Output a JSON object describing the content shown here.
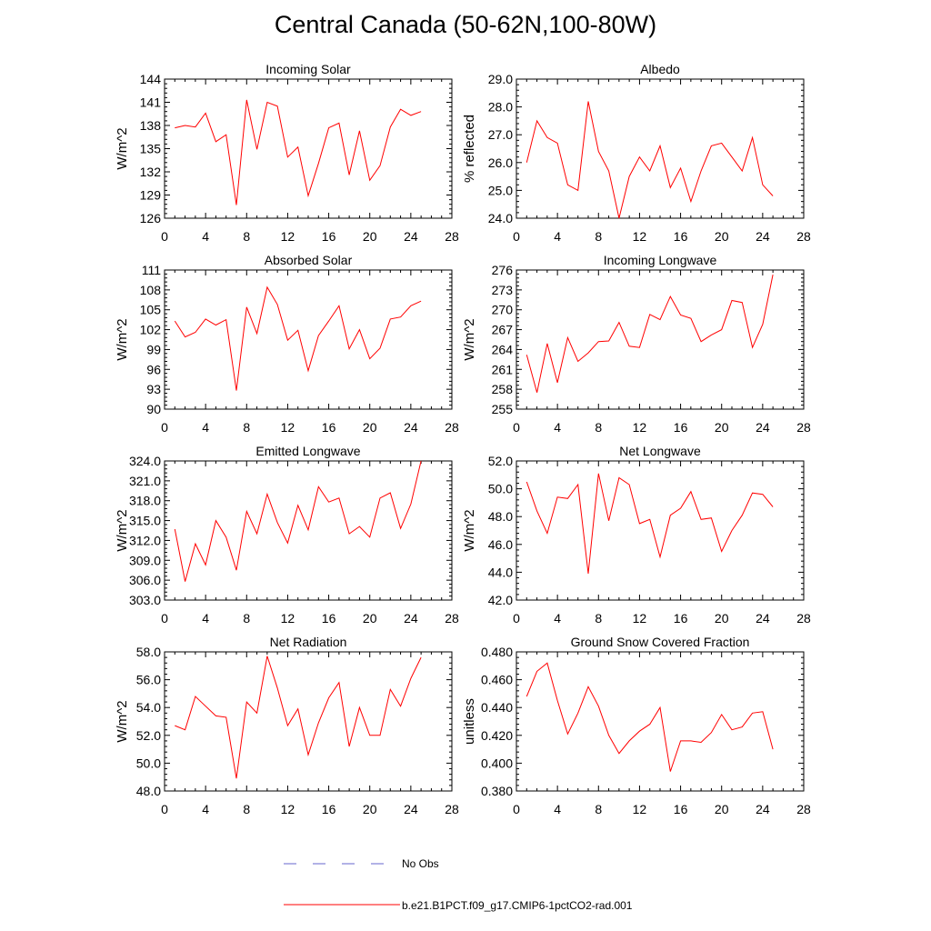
{
  "figure": {
    "title": "Central Canada (50-62N,100-80W)"
  },
  "legend": {
    "obs_label": "No Obs",
    "obs_color": "#6666cc",
    "model_label": "b.e21.B1PCT.f09_g17.CMIP6-1pctCO2-rad.001",
    "model_color": "#ff0000"
  },
  "chart_data": [
    {
      "type": "line",
      "title": "Incoming Solar",
      "ylabel": "W/m^2",
      "xlim": [
        0,
        28
      ],
      "ylim": [
        126,
        144
      ],
      "xticks": [
        "0",
        "4",
        "8",
        "12",
        "16",
        "20",
        "24",
        "28"
      ],
      "yticks": [
        "126",
        "129",
        "132",
        "135",
        "138",
        "141",
        "144"
      ],
      "series": [
        {
          "color": "#ff0000",
          "x": [
            1,
            2,
            3,
            4,
            5,
            6,
            7,
            8,
            9,
            10,
            11,
            12,
            13,
            14,
            15,
            16,
            17,
            18,
            19,
            20,
            21,
            22,
            23,
            24,
            25
          ],
          "values": [
            137.7,
            138.0,
            137.8,
            139.6,
            135.9,
            136.8,
            127.7,
            141.3,
            134.9,
            141.0,
            140.5,
            133.9,
            135.2,
            128.9,
            133.1,
            137.7,
            138.3,
            131.6,
            137.3,
            130.9,
            132.8,
            137.8,
            140.1,
            139.3,
            139.8
          ]
        }
      ]
    },
    {
      "type": "line",
      "title": "Albedo",
      "ylabel": "% reflected",
      "xlim": [
        0,
        28
      ],
      "ylim": [
        24.0,
        29.0
      ],
      "xticks": [
        "0",
        "4",
        "8",
        "12",
        "16",
        "20",
        "24",
        "28"
      ],
      "yticks": [
        "24.0",
        "25.0",
        "26.0",
        "27.0",
        "28.0",
        "29.0"
      ],
      "series": [
        {
          "color": "#ff0000",
          "x": [
            1,
            2,
            3,
            4,
            5,
            6,
            7,
            8,
            9,
            10,
            11,
            12,
            13,
            14,
            15,
            16,
            17,
            18,
            19,
            20,
            21,
            22,
            23,
            24,
            25
          ],
          "values": [
            26.0,
            27.5,
            26.9,
            26.7,
            25.2,
            25.0,
            28.2,
            26.4,
            25.7,
            24.0,
            25.5,
            26.2,
            25.7,
            26.6,
            25.1,
            25.8,
            24.6,
            25.7,
            26.6,
            26.7,
            26.2,
            25.7,
            26.9,
            25.2,
            24.8
          ]
        }
      ]
    },
    {
      "type": "line",
      "title": "Absorbed Solar",
      "ylabel": "W/m^2",
      "xlim": [
        0,
        28
      ],
      "ylim": [
        90,
        111
      ],
      "xticks": [
        "0",
        "4",
        "8",
        "12",
        "16",
        "20",
        "24",
        "28"
      ],
      "yticks": [
        "90",
        "93",
        "96",
        "99",
        "102",
        "105",
        "108",
        "111"
      ],
      "series": [
        {
          "color": "#ff0000",
          "x": [
            1,
            2,
            3,
            4,
            5,
            6,
            7,
            8,
            9,
            10,
            11,
            12,
            13,
            14,
            15,
            16,
            17,
            18,
            19,
            20,
            21,
            22,
            23,
            24,
            25
          ],
          "values": [
            103.3,
            100.9,
            101.6,
            103.6,
            102.7,
            103.5,
            92.8,
            105.4,
            101.4,
            108.4,
            105.8,
            100.4,
            101.9,
            95.8,
            101.1,
            103.3,
            105.6,
            99.1,
            102.0,
            97.6,
            99.2,
            103.6,
            103.9,
            105.6,
            106.3
          ]
        }
      ]
    },
    {
      "type": "line",
      "title": "Incoming Longwave",
      "ylabel": "W/m^2",
      "xlim": [
        0,
        28
      ],
      "ylim": [
        255,
        276
      ],
      "xticks": [
        "0",
        "4",
        "8",
        "12",
        "16",
        "20",
        "24",
        "28"
      ],
      "yticks": [
        "255",
        "258",
        "261",
        "264",
        "267",
        "270",
        "273",
        "276"
      ],
      "series": [
        {
          "color": "#ff0000",
          "x": [
            1,
            2,
            3,
            4,
            5,
            6,
            7,
            8,
            9,
            10,
            11,
            12,
            13,
            14,
            15,
            16,
            17,
            18,
            19,
            20,
            21,
            22,
            23,
            24,
            25
          ],
          "values": [
            263.2,
            257.5,
            264.9,
            259.0,
            265.8,
            262.2,
            263.5,
            265.2,
            265.3,
            268.1,
            264.5,
            264.3,
            269.3,
            268.5,
            272.0,
            269.2,
            268.7,
            265.2,
            266.2,
            267.0,
            271.4,
            271.1,
            264.3,
            267.8,
            275.3
          ]
        }
      ]
    },
    {
      "type": "line",
      "title": "Emitted Longwave",
      "ylabel": "W/m^2",
      "xlim": [
        0,
        28
      ],
      "ylim": [
        303.0,
        324.0
      ],
      "xticks": [
        "0",
        "4",
        "8",
        "12",
        "16",
        "20",
        "24",
        "28"
      ],
      "yticks": [
        "303.0",
        "306.0",
        "309.0",
        "312.0",
        "315.0",
        "318.0",
        "321.0",
        "324.0"
      ],
      "series": [
        {
          "color": "#ff0000",
          "x": [
            1,
            2,
            3,
            4,
            5,
            6,
            7,
            8,
            9,
            10,
            11,
            12,
            13,
            14,
            15,
            16,
            17,
            18,
            19,
            20,
            21,
            22,
            23,
            24,
            25
          ],
          "values": [
            313.7,
            305.8,
            311.5,
            308.3,
            315.0,
            312.5,
            307.5,
            316.4,
            313.0,
            319.0,
            314.7,
            311.6,
            317.3,
            313.6,
            320.1,
            317.8,
            318.4,
            313.0,
            314.1,
            312.5,
            318.4,
            319.2,
            313.8,
            317.5,
            324.0
          ]
        }
      ]
    },
    {
      "type": "line",
      "title": "Net Longwave",
      "ylabel": "W/m^2",
      "xlim": [
        0,
        28
      ],
      "ylim": [
        42.0,
        52.0
      ],
      "xticks": [
        "0",
        "4",
        "8",
        "12",
        "16",
        "20",
        "24",
        "28"
      ],
      "yticks": [
        "42.0",
        "44.0",
        "46.0",
        "48.0",
        "50.0",
        "52.0"
      ],
      "series": [
        {
          "color": "#ff0000",
          "x": [
            1,
            2,
            3,
            4,
            5,
            6,
            7,
            8,
            9,
            10,
            11,
            12,
            13,
            14,
            15,
            16,
            17,
            18,
            19,
            20,
            21,
            22,
            23,
            24,
            25
          ],
          "values": [
            50.5,
            48.4,
            46.8,
            49.4,
            49.3,
            50.3,
            43.9,
            51.1,
            47.7,
            50.8,
            50.3,
            47.5,
            47.8,
            45.1,
            48.1,
            48.6,
            49.8,
            47.8,
            47.9,
            45.5,
            47.0,
            48.1,
            49.7,
            49.6,
            48.7
          ]
        }
      ]
    },
    {
      "type": "line",
      "title": "Net Radiation",
      "ylabel": "W/m^2",
      "xlim": [
        0,
        28
      ],
      "ylim": [
        48.0,
        58.0
      ],
      "xticks": [
        "0",
        "4",
        "8",
        "12",
        "16",
        "20",
        "24",
        "28"
      ],
      "yticks": [
        "48.0",
        "50.0",
        "52.0",
        "54.0",
        "56.0",
        "58.0"
      ],
      "series": [
        {
          "color": "#ff0000",
          "x": [
            1,
            2,
            3,
            4,
            5,
            6,
            7,
            8,
            9,
            10,
            11,
            12,
            13,
            14,
            15,
            16,
            17,
            18,
            19,
            20,
            21,
            22,
            23,
            24,
            25
          ],
          "values": [
            52.7,
            52.4,
            54.8,
            54.1,
            53.4,
            53.3,
            48.9,
            54.4,
            53.6,
            57.7,
            55.4,
            52.7,
            53.9,
            50.6,
            52.9,
            54.7,
            55.8,
            51.2,
            54.0,
            52.0,
            52.0,
            55.3,
            54.1,
            56.1,
            57.6
          ]
        }
      ]
    },
    {
      "type": "line",
      "title": "Ground Snow Covered Fraction",
      "ylabel": "unitless",
      "xlim": [
        0,
        28
      ],
      "ylim": [
        0.38,
        0.48
      ],
      "xticks": [
        "0",
        "4",
        "8",
        "12",
        "16",
        "20",
        "24",
        "28"
      ],
      "yticks": [
        "0.380",
        "0.400",
        "0.420",
        "0.440",
        "0.460",
        "0.480"
      ],
      "series": [
        {
          "color": "#ff0000",
          "x": [
            1,
            2,
            3,
            4,
            5,
            6,
            7,
            8,
            9,
            10,
            11,
            12,
            13,
            14,
            15,
            16,
            17,
            18,
            19,
            20,
            21,
            22,
            23,
            24,
            25
          ],
          "values": [
            0.448,
            0.466,
            0.472,
            0.445,
            0.421,
            0.436,
            0.455,
            0.441,
            0.42,
            0.407,
            0.416,
            0.423,
            0.428,
            0.44,
            0.394,
            0.416,
            0.416,
            0.415,
            0.422,
            0.435,
            0.424,
            0.426,
            0.436,
            0.437,
            0.41
          ]
        }
      ]
    }
  ]
}
